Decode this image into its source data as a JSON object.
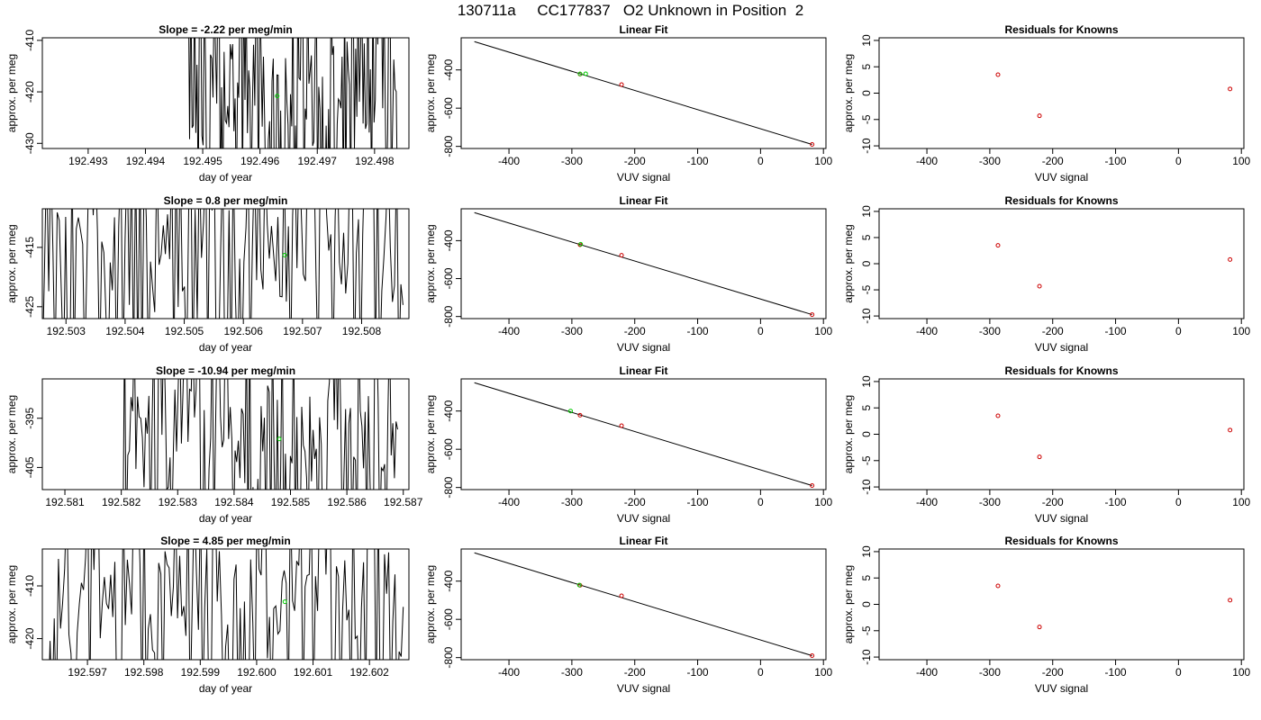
{
  "title": "130711a     CC177837   O2 Unknown in Position  2",
  "colors": {
    "line": "#000000",
    "known": "#cc0000",
    "unknown": "#00cc00"
  },
  "chart_data": [
    {
      "type": "line",
      "title": "Slope =  -2.22  per meg/min",
      "xlabel": "day of year",
      "ylabel": "approx. per meg",
      "xlim": [
        192.4922,
        192.4986
      ],
      "ylim": [
        -431,
        -409.5
      ],
      "xticks": [
        192.493,
        192.494,
        192.495,
        192.496,
        192.497,
        192.498
      ],
      "xtick_labels": [
        "192.493",
        "192.494",
        "192.495",
        "192.496",
        "192.497",
        "192.498"
      ],
      "yticks": [
        -410,
        -420,
        -430
      ],
      "ytick_labels": [
        "-410",
        "-420",
        "-430"
      ],
      "series_start": 192.49475,
      "series_end": 192.4984,
      "highlight_point": {
        "x": 192.4963,
        "y": -420.8
      }
    },
    {
      "type": "scatter",
      "title": "Linear Fit",
      "xlabel": "VUV signal",
      "ylabel": "approx. per meg",
      "xlim": [
        -476,
        104
      ],
      "ylim": [
        -811,
        -232
      ],
      "xticks": [
        -400,
        -300,
        -200,
        -100,
        0,
        100
      ],
      "xtick_labels": [
        "-400",
        "-300",
        "-200",
        "-100",
        "0",
        "100"
      ],
      "yticks": [
        -400,
        -600,
        -800
      ],
      "ytick_labels": [
        "-400",
        "-600",
        "-800"
      ],
      "fit_line": {
        "x": [
          -455,
          82
        ],
        "y": [
          -252,
          -790
        ]
      },
      "knowns": [
        {
          "x": -287,
          "y": -422
        },
        {
          "x": -221,
          "y": -477
        },
        {
          "x": 82,
          "y": -790
        }
      ],
      "unknowns": [
        {
          "x": -287,
          "y": -421
        },
        {
          "x": -278,
          "y": -420
        }
      ]
    },
    {
      "type": "scatter",
      "title": "Residuals for Knowns",
      "xlabel": "VUV signal",
      "ylabel": "approx. per meg",
      "xlim": [
        -476,
        104
      ],
      "ylim": [
        -10.5,
        10.5
      ],
      "xticks": [
        -400,
        -300,
        -200,
        -100,
        0,
        100
      ],
      "xtick_labels": [
        "-400",
        "-300",
        "-200",
        "-100",
        "0",
        "100"
      ],
      "yticks": [
        10,
        5,
        0,
        -5,
        -10
      ],
      "ytick_labels": [
        "10",
        "5",
        "0",
        "-5",
        "-10"
      ],
      "points": [
        {
          "x": -287,
          "y": 3.5
        },
        {
          "x": -221,
          "y": -4.3
        },
        {
          "x": 82,
          "y": 0.8
        }
      ]
    },
    {
      "type": "line",
      "title": "Slope =  0.8  per meg/min",
      "xlabel": "day of year",
      "ylabel": "approx. per meg",
      "xlim": [
        192.5026,
        192.5088
      ],
      "ylim": [
        -427,
        -408.5
      ],
      "xticks": [
        192.503,
        192.504,
        192.505,
        192.506,
        192.507,
        192.508
      ],
      "xtick_labels": [
        "192.503",
        "192.504",
        "192.505",
        "192.506",
        "192.507",
        "192.508"
      ],
      "yticks": [
        -415,
        -425
      ],
      "ytick_labels": [
        "-415",
        "-425"
      ],
      "series_start": 192.5026,
      "series_end": 192.5087,
      "highlight_point": {
        "x": 192.5067,
        "y": -416.3
      }
    },
    {
      "type": "scatter",
      "title": "Linear Fit",
      "xlabel": "VUV signal",
      "ylabel": "approx. per meg",
      "xlim": [
        -476,
        104
      ],
      "ylim": [
        -811,
        -232
      ],
      "xticks": [
        -400,
        -300,
        -200,
        -100,
        0,
        100
      ],
      "xtick_labels": [
        "-400",
        "-300",
        "-200",
        "-100",
        "0",
        "100"
      ],
      "yticks": [
        -400,
        -600,
        -800
      ],
      "ytick_labels": [
        "-400",
        "-600",
        "-800"
      ],
      "fit_line": {
        "x": [
          -455,
          82
        ],
        "y": [
          -252,
          -790
        ]
      },
      "knowns": [
        {
          "x": -287,
          "y": -422
        },
        {
          "x": -221,
          "y": -477
        },
        {
          "x": 82,
          "y": -790
        }
      ],
      "unknowns": [
        {
          "x": -286,
          "y": -419
        }
      ]
    },
    {
      "type": "scatter",
      "title": "Residuals for Knowns",
      "xlabel": "VUV signal",
      "ylabel": "approx. per meg",
      "xlim": [
        -476,
        104
      ],
      "ylim": [
        -10.5,
        10.5
      ],
      "xticks": [
        -400,
        -300,
        -200,
        -100,
        0,
        100
      ],
      "xtick_labels": [
        "-400",
        "-300",
        "-200",
        "-100",
        "0",
        "100"
      ],
      "yticks": [
        10,
        5,
        0,
        -5,
        -10
      ],
      "ytick_labels": [
        "10",
        "5",
        "0",
        "-5",
        "-10"
      ],
      "points": [
        {
          "x": -287,
          "y": 3.5
        },
        {
          "x": -221,
          "y": -4.3
        },
        {
          "x": 82,
          "y": 0.8
        }
      ]
    },
    {
      "type": "line",
      "title": "Slope =  -10.94  per meg/min",
      "xlabel": "day of year",
      "ylabel": "approx. per meg",
      "xlim": [
        192.5806,
        192.5871
      ],
      "ylim": [
        -409.5,
        -387
      ],
      "xticks": [
        192.581,
        192.582,
        192.583,
        192.584,
        192.585,
        192.586,
        192.587
      ],
      "xtick_labels": [
        "192.581",
        "192.582",
        "192.583",
        "192.584",
        "192.585",
        "192.586",
        "192.587"
      ],
      "yticks": [
        -395,
        -405
      ],
      "ytick_labels": [
        "-395",
        "-405"
      ],
      "series_start": 192.582,
      "series_end": 192.5869,
      "highlight_point": {
        "x": 192.5848,
        "y": -399.2
      }
    },
    {
      "type": "scatter",
      "title": "Linear Fit",
      "xlabel": "VUV signal",
      "ylabel": "approx. per meg",
      "xlim": [
        -476,
        104
      ],
      "ylim": [
        -811,
        -232
      ],
      "xticks": [
        -400,
        -300,
        -200,
        -100,
        0,
        100
      ],
      "xtick_labels": [
        "-400",
        "-300",
        "-200",
        "-100",
        "0",
        "100"
      ],
      "yticks": [
        -400,
        -600,
        -800
      ],
      "ytick_labels": [
        "-400",
        "-600",
        "-800"
      ],
      "fit_line": {
        "x": [
          -455,
          82
        ],
        "y": [
          -252,
          -790
        ]
      },
      "knowns": [
        {
          "x": -287,
          "y": -422
        },
        {
          "x": -221,
          "y": -477
        },
        {
          "x": 82,
          "y": -790
        }
      ],
      "unknowns": [
        {
          "x": -302,
          "y": -400
        }
      ]
    },
    {
      "type": "scatter",
      "title": "Residuals for Knowns",
      "xlabel": "VUV signal",
      "ylabel": "approx. per meg",
      "xlim": [
        -476,
        104
      ],
      "ylim": [
        -10.5,
        10.5
      ],
      "xticks": [
        -400,
        -300,
        -200,
        -100,
        0,
        100
      ],
      "xtick_labels": [
        "-400",
        "-300",
        "-200",
        "-100",
        "0",
        "100"
      ],
      "yticks": [
        10,
        5,
        0,
        -5,
        -10
      ],
      "ytick_labels": [
        "10",
        "5",
        "0",
        "-5",
        "-10"
      ],
      "points": [
        {
          "x": -287,
          "y": 3.5
        },
        {
          "x": -221,
          "y": -4.3
        },
        {
          "x": 82,
          "y": 0.8
        }
      ]
    },
    {
      "type": "line",
      "title": "Slope =  4.85  per meg/min",
      "xlabel": "day of year",
      "ylabel": "approx. per meg",
      "xlim": [
        192.5962,
        192.6027
      ],
      "ylim": [
        -424,
        -403
      ],
      "xticks": [
        192.597,
        192.598,
        192.599,
        192.6,
        192.601,
        192.602
      ],
      "xtick_labels": [
        "192.597",
        "192.598",
        "192.599",
        "192.600",
        "192.601",
        "192.602"
      ],
      "yticks": [
        -410,
        -420
      ],
      "ytick_labels": [
        "-410",
        "-420"
      ],
      "series_start": 192.5963,
      "series_end": 192.6026,
      "highlight_point": {
        "x": 192.6005,
        "y": -413.0
      }
    },
    {
      "type": "scatter",
      "title": "Linear Fit",
      "xlabel": "VUV signal",
      "ylabel": "approx. per meg",
      "xlim": [
        -476,
        104
      ],
      "ylim": [
        -811,
        -232
      ],
      "xticks": [
        -400,
        -300,
        -200,
        -100,
        0,
        100
      ],
      "xtick_labels": [
        "-400",
        "-300",
        "-200",
        "-100",
        "0",
        "100"
      ],
      "yticks": [
        -400,
        -600,
        -800
      ],
      "ytick_labels": [
        "-400",
        "-600",
        "-800"
      ],
      "fit_line": {
        "x": [
          -455,
          82
        ],
        "y": [
          -252,
          -790
        ]
      },
      "knowns": [
        {
          "x": -287,
          "y": -422
        },
        {
          "x": -221,
          "y": -477
        },
        {
          "x": 82,
          "y": -790
        }
      ],
      "unknowns": [
        {
          "x": -288,
          "y": -421
        }
      ]
    },
    {
      "type": "scatter",
      "title": "Residuals for Knowns",
      "xlabel": "VUV signal",
      "ylabel": "approx. per meg",
      "xlim": [
        -476,
        104
      ],
      "ylim": [
        -10.5,
        10.5
      ],
      "xticks": [
        -400,
        -300,
        -200,
        -100,
        0,
        100
      ],
      "xtick_labels": [
        "-400",
        "-300",
        "-200",
        "-100",
        "0",
        "100"
      ],
      "yticks": [
        10,
        5,
        0,
        -5,
        -10
      ],
      "ytick_labels": [
        "10",
        "5",
        "0",
        "-5",
        "-10"
      ],
      "points": [
        {
          "x": -287,
          "y": 3.5
        },
        {
          "x": -221,
          "y": -4.3
        },
        {
          "x": 82,
          "y": 0.8
        }
      ]
    }
  ]
}
